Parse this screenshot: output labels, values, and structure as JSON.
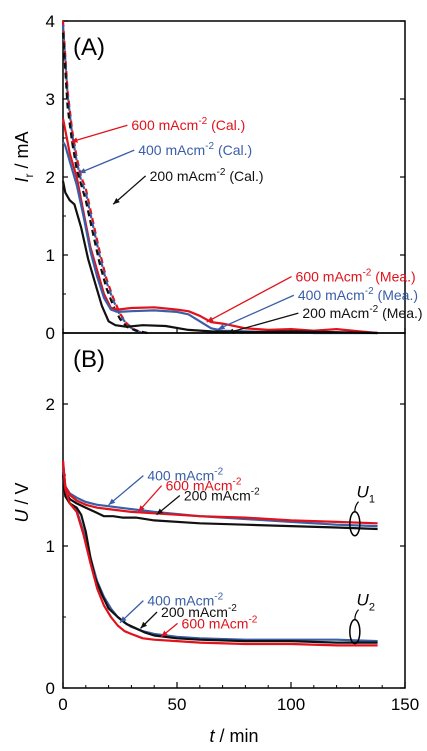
{
  "colors": {
    "black": "#111111",
    "blue": "#3a5ea8",
    "red": "#e0121b"
  },
  "chart_data": [
    {
      "type": "line",
      "panel_label": "(A)",
      "ylabel_main": "I",
      "ylabel_sub": "r",
      "ylabel_unit": " / mA",
      "xlim": [
        0,
        150
      ],
      "ylim": [
        0,
        4
      ],
      "yticks": [
        "0",
        "1",
        "2",
        "3",
        "4"
      ],
      "series": [
        {
          "name": "600 mAcm-2 (Cal.)",
          "color": "red",
          "dash": true,
          "x": [
            0,
            2,
            4,
            6,
            8,
            10,
            13,
            16,
            19,
            22,
            25,
            28,
            31,
            35
          ],
          "y": [
            4.0,
            3.1,
            2.6,
            2.25,
            2.0,
            1.85,
            1.45,
            1.05,
            0.7,
            0.45,
            0.25,
            0.12,
            0.05,
            0.0
          ]
        },
        {
          "name": "400 mAcm-2 (Cal.)",
          "color": "blue",
          "dash": true,
          "x": [
            0,
            2,
            4,
            6,
            8,
            10,
            13,
            16,
            19,
            22,
            25,
            28,
            31,
            35
          ],
          "y": [
            3.95,
            3.05,
            2.55,
            2.2,
            1.95,
            1.8,
            1.4,
            1.0,
            0.66,
            0.42,
            0.23,
            0.11,
            0.04,
            0.0
          ]
        },
        {
          "name": "200 mAcm-2 (Cal.)",
          "color": "black",
          "dash": true,
          "x": [
            0,
            2,
            4,
            6,
            8,
            10,
            13,
            16,
            19,
            22,
            25,
            28,
            32,
            37
          ],
          "y": [
            3.85,
            2.9,
            2.45,
            2.1,
            1.9,
            1.7,
            1.3,
            0.9,
            0.58,
            0.35,
            0.18,
            0.08,
            0.03,
            0.0
          ]
        },
        {
          "name": "600 mAcm-2 (Mea.)",
          "color": "red",
          "dash": false,
          "x": [
            0,
            1,
            3,
            6,
            9,
            12,
            15,
            18,
            21,
            24,
            30,
            40,
            50,
            55,
            60,
            65,
            70,
            80,
            90,
            100,
            110,
            120,
            130,
            138
          ],
          "y": [
            2.75,
            2.6,
            2.3,
            2.0,
            1.55,
            1.1,
            0.8,
            0.5,
            0.32,
            0.3,
            0.32,
            0.33,
            0.3,
            0.28,
            0.22,
            0.14,
            0.12,
            0.06,
            0.04,
            0.05,
            0.03,
            0.05,
            0.02,
            0.0
          ]
        },
        {
          "name": "400 mAcm-2 (Mea.)",
          "color": "blue",
          "dash": false,
          "x": [
            0,
            1,
            3,
            6,
            9,
            12,
            15,
            18,
            21,
            24,
            30,
            40,
            50,
            55,
            60,
            65,
            70,
            80,
            90,
            100,
            110,
            120,
            130,
            138
          ],
          "y": [
            2.45,
            2.4,
            2.2,
            1.9,
            1.5,
            1.05,
            0.72,
            0.45,
            0.3,
            0.27,
            0.28,
            0.29,
            0.27,
            0.24,
            0.15,
            0.06,
            0.03,
            0.02,
            0.01,
            0.01,
            0.0,
            0.0,
            0.0,
            0.0
          ]
        },
        {
          "name": "200 mAcm-2 (Mea.)",
          "color": "black",
          "dash": false,
          "x": [
            0,
            1,
            3,
            5,
            8,
            11,
            14,
            17,
            20,
            23,
            28,
            35,
            45,
            55,
            65,
            80,
            100,
            120,
            138
          ],
          "y": [
            1.95,
            1.8,
            1.7,
            1.65,
            1.35,
            0.95,
            0.65,
            0.35,
            0.15,
            0.1,
            0.08,
            0.1,
            0.09,
            0.04,
            0.02,
            0.01,
            0.02,
            0.01,
            0.0
          ]
        }
      ],
      "annotations": [
        {
          "text": "600 mAcm",
          "sup": "-2",
          "tail": " (Cal.)",
          "color": "red",
          "x": 30,
          "y": 2.6,
          "arrow_to": [
            3.5,
            2.45
          ]
        },
        {
          "text": "400 mAcm",
          "sup": "-2",
          "tail": " (Cal.)",
          "color": "blue",
          "x": 33,
          "y": 2.28,
          "arrow_to": [
            7,
            2.05
          ]
        },
        {
          "text": "200 mAcm",
          "sup": "-2",
          "tail": " (Cal.)",
          "color": "black",
          "x": 38,
          "y": 1.95,
          "arrow_to": [
            22,
            1.65
          ]
        },
        {
          "text": "600 mAcm",
          "sup": "-2",
          "tail": " (Mea.)",
          "color": "red",
          "x": 102,
          "y": 0.66,
          "arrow_to": [
            63,
            0.14
          ]
        },
        {
          "text": "400 mAcm",
          "sup": "-2",
          "tail": " (Mea.)",
          "color": "blue",
          "x": 103,
          "y": 0.42,
          "arrow_to": [
            68,
            0.05
          ]
        },
        {
          "text": "200 mAcm",
          "sup": "-2",
          "tail": " (Mea.)",
          "color": "black",
          "x": 105,
          "y": 0.19,
          "arrow_to": [
            72,
            0.0
          ]
        }
      ]
    },
    {
      "type": "line",
      "panel_label": "(B)",
      "ylabel_main": "U",
      "ylabel_sub": "",
      "ylabel_unit": " / V",
      "xlabel_main": "t",
      "xlabel_unit": " / min",
      "xlim": [
        0,
        150
      ],
      "ylim": [
        0,
        2.5
      ],
      "yticks": [
        "0",
        "1",
        "2"
      ],
      "xticks": [
        "0",
        "50",
        "100",
        "150"
      ],
      "series": [
        {
          "name": "400 mAcm-2 U1",
          "color": "blue",
          "x": [
            0,
            1,
            3,
            6,
            10,
            15,
            20,
            25,
            30,
            40,
            60,
            80,
            100,
            120,
            138
          ],
          "y": [
            1.58,
            1.42,
            1.37,
            1.34,
            1.31,
            1.29,
            1.28,
            1.27,
            1.26,
            1.24,
            1.21,
            1.19,
            1.17,
            1.15,
            1.14
          ]
        },
        {
          "name": "600 mAcm-2 U1",
          "color": "red",
          "x": [
            0,
            1,
            3,
            6,
            10,
            15,
            20,
            25,
            30,
            40,
            60,
            80,
            100,
            120,
            138
          ],
          "y": [
            1.6,
            1.42,
            1.36,
            1.32,
            1.29,
            1.27,
            1.26,
            1.25,
            1.24,
            1.23,
            1.21,
            1.2,
            1.18,
            1.17,
            1.16
          ]
        },
        {
          "name": "200 mAcm-2 U1",
          "color": "black",
          "x": [
            0,
            1,
            3,
            6,
            10,
            14,
            18,
            22,
            26,
            32,
            40,
            60,
            80,
            100,
            120,
            138
          ],
          "y": [
            1.52,
            1.38,
            1.33,
            1.3,
            1.27,
            1.24,
            1.21,
            1.21,
            1.2,
            1.2,
            1.18,
            1.16,
            1.15,
            1.14,
            1.13,
            1.12
          ]
        },
        {
          "name": "400 mAcm-2 U2",
          "color": "blue",
          "x": [
            0,
            1,
            3,
            6,
            9,
            12,
            15,
            18,
            21,
            24,
            27,
            30,
            35,
            40,
            50,
            60,
            80,
            100,
            120,
            138
          ],
          "y": [
            1.55,
            1.38,
            1.3,
            1.25,
            1.1,
            0.92,
            0.75,
            0.64,
            0.56,
            0.5,
            0.46,
            0.43,
            0.4,
            0.38,
            0.36,
            0.35,
            0.34,
            0.34,
            0.34,
            0.33
          ]
        },
        {
          "name": "200 mAcm-2 U2",
          "color": "black",
          "x": [
            0,
            1,
            3,
            6,
            8,
            10,
            12,
            14,
            17,
            20,
            24,
            28,
            32,
            36,
            40,
            50,
            60,
            80,
            100,
            120,
            138
          ],
          "y": [
            1.5,
            1.35,
            1.3,
            1.27,
            1.22,
            1.1,
            0.92,
            0.78,
            0.66,
            0.56,
            0.5,
            0.45,
            0.42,
            0.39,
            0.37,
            0.35,
            0.34,
            0.33,
            0.33,
            0.32,
            0.32
          ]
        },
        {
          "name": "600 mAcm-2 U2",
          "color": "red",
          "x": [
            0,
            1,
            3,
            6,
            9,
            12,
            15,
            18,
            21,
            24,
            27,
            30,
            35,
            40,
            50,
            60,
            80,
            100,
            120,
            138
          ],
          "y": [
            1.6,
            1.4,
            1.3,
            1.24,
            1.08,
            0.88,
            0.7,
            0.58,
            0.5,
            0.44,
            0.4,
            0.38,
            0.35,
            0.34,
            0.33,
            0.32,
            0.31,
            0.31,
            0.3,
            0.3
          ]
        }
      ],
      "annotations": [
        {
          "text": "400 mAcm",
          "sup": "-2",
          "tail": "",
          "color": "blue",
          "x": 37,
          "y": 1.46,
          "arrow_to": [
            20,
            1.29
          ]
        },
        {
          "text": "600 mAcm",
          "sup": "-2",
          "tail": "",
          "color": "red",
          "x": 45,
          "y": 1.39,
          "arrow_to": [
            33,
            1.24
          ]
        },
        {
          "text": "200 mAcm",
          "sup": "-2",
          "tail": "",
          "color": "black",
          "x": 53,
          "y": 1.32,
          "arrow_to": [
            41,
            1.22
          ]
        },
        {
          "text": "400 mAcm",
          "sup": "-2",
          "tail": "",
          "color": "blue",
          "x": 37,
          "y": 0.58,
          "arrow_to": [
            25,
            0.46
          ]
        },
        {
          "text": "200 mAcm",
          "sup": "-2",
          "tail": "",
          "color": "black",
          "x": 43,
          "y": 0.5,
          "arrow_to": [
            34,
            0.42
          ]
        },
        {
          "text": "600 mAcm",
          "sup": "-2",
          "tail": "",
          "color": "red",
          "x": 52,
          "y": 0.42,
          "arrow_to": [
            43,
            0.36
          ]
        }
      ],
      "series_labels": [
        {
          "main": "U",
          "sub": "1",
          "x": 127,
          "y": 1.34
        },
        {
          "main": "U",
          "sub": "2",
          "x": 127,
          "y": 0.58
        }
      ]
    }
  ]
}
